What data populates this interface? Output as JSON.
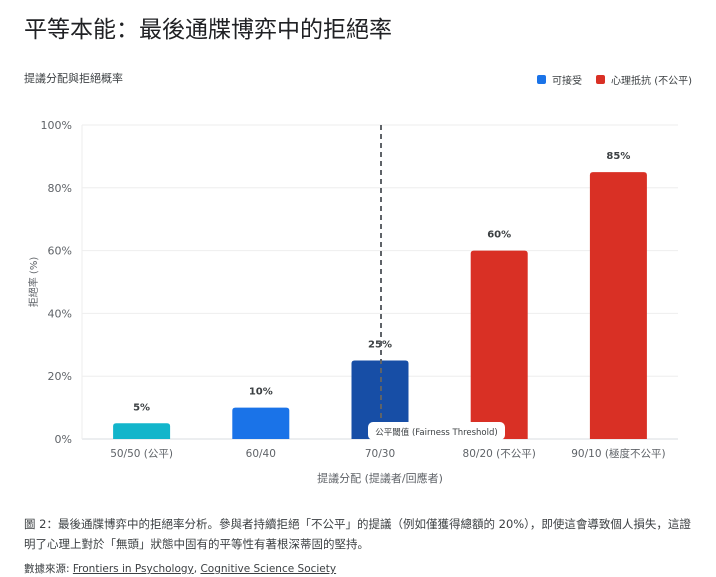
{
  "title": "平等本能：最後通牒博弈中的拒絕率",
  "chart_data": {
    "type": "bar",
    "title": "提議分配與拒絕概率",
    "xlabel": "提議分配 (提議者/回應者)",
    "ylabel": "拒絕率 (%)",
    "ylim": [
      0,
      100
    ],
    "yticks": [
      "0%",
      "20%",
      "40%",
      "60%",
      "80%",
      "100%"
    ],
    "grid": true,
    "legend_position": "top-right",
    "legend": [
      {
        "label": "可接受",
        "color": "#1a73e8"
      },
      {
        "label": "心理抵抗 (不公平)",
        "color": "#d93025"
      }
    ],
    "categories": [
      "50/50 (公平)",
      "60/40",
      "70/30",
      "80/20 (不公平)",
      "90/10 (極度不公平)"
    ],
    "values": [
      5,
      10,
      25,
      60,
      85
    ],
    "data_labels": [
      "5%",
      "10%",
      "25%",
      "60%",
      "85%"
    ],
    "bar_colors": [
      "#12b5cb",
      "#1a73e8",
      "#174ea6",
      "#d93025",
      "#d93025"
    ],
    "annotation": {
      "label": "公平閾值 (Fairness Threshold)",
      "between": [
        "70/30",
        "80/20 (不公平)"
      ],
      "style": "dashed"
    }
  },
  "caption": "圖 2：最後通牒博弈中的拒絕率分析。參與者持續拒絕「不公平」的提議（例如僅獲得總額的 20%），即使這會導致個人損失，這證明了心理上對於「無頭」狀態中固有的平等性有著根深蒂固的堅持。",
  "source": {
    "prefix": "數據來源: ",
    "links": [
      "Frontiers in Psychology",
      "Cognitive Science Society"
    ],
    "separator": ", "
  }
}
